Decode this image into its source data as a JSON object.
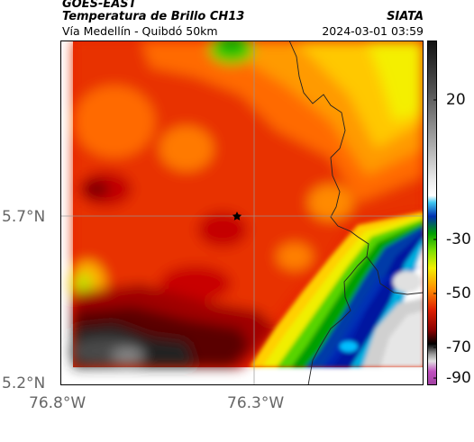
{
  "header": {
    "title_line1": "GOES-EAST",
    "title_line2": "Temperatura de Brillo CH13",
    "organization": "SIATA",
    "subtitle": "Vía Medellín - Quibdó 50km",
    "datetime": "2024-03-01 03:59"
  },
  "map": {
    "lat_ticks": [
      "5.7°N",
      "5.2°N"
    ],
    "lon_ticks": [
      "76.8°W",
      "76.3°W"
    ],
    "marker": "star",
    "colormap": [
      "#c248c2",
      "#7a7a7a",
      "#f0f0f0",
      "#000000",
      "#6b0000",
      "#d00000",
      "#ff8000",
      "#ffd000",
      "#f0f000",
      "#6fe000",
      "#00a800",
      "#0030b0",
      "#00b0e0",
      "#ffffff",
      "#bdbdbd",
      "#1a1a1a"
    ]
  },
  "colorbar": {
    "ticks": [
      "20",
      "-30",
      "-50",
      "-70",
      "-90"
    ],
    "values": [
      20,
      -30,
      -50,
      -70,
      -90
    ],
    "range": [
      -95,
      30
    ]
  }
}
